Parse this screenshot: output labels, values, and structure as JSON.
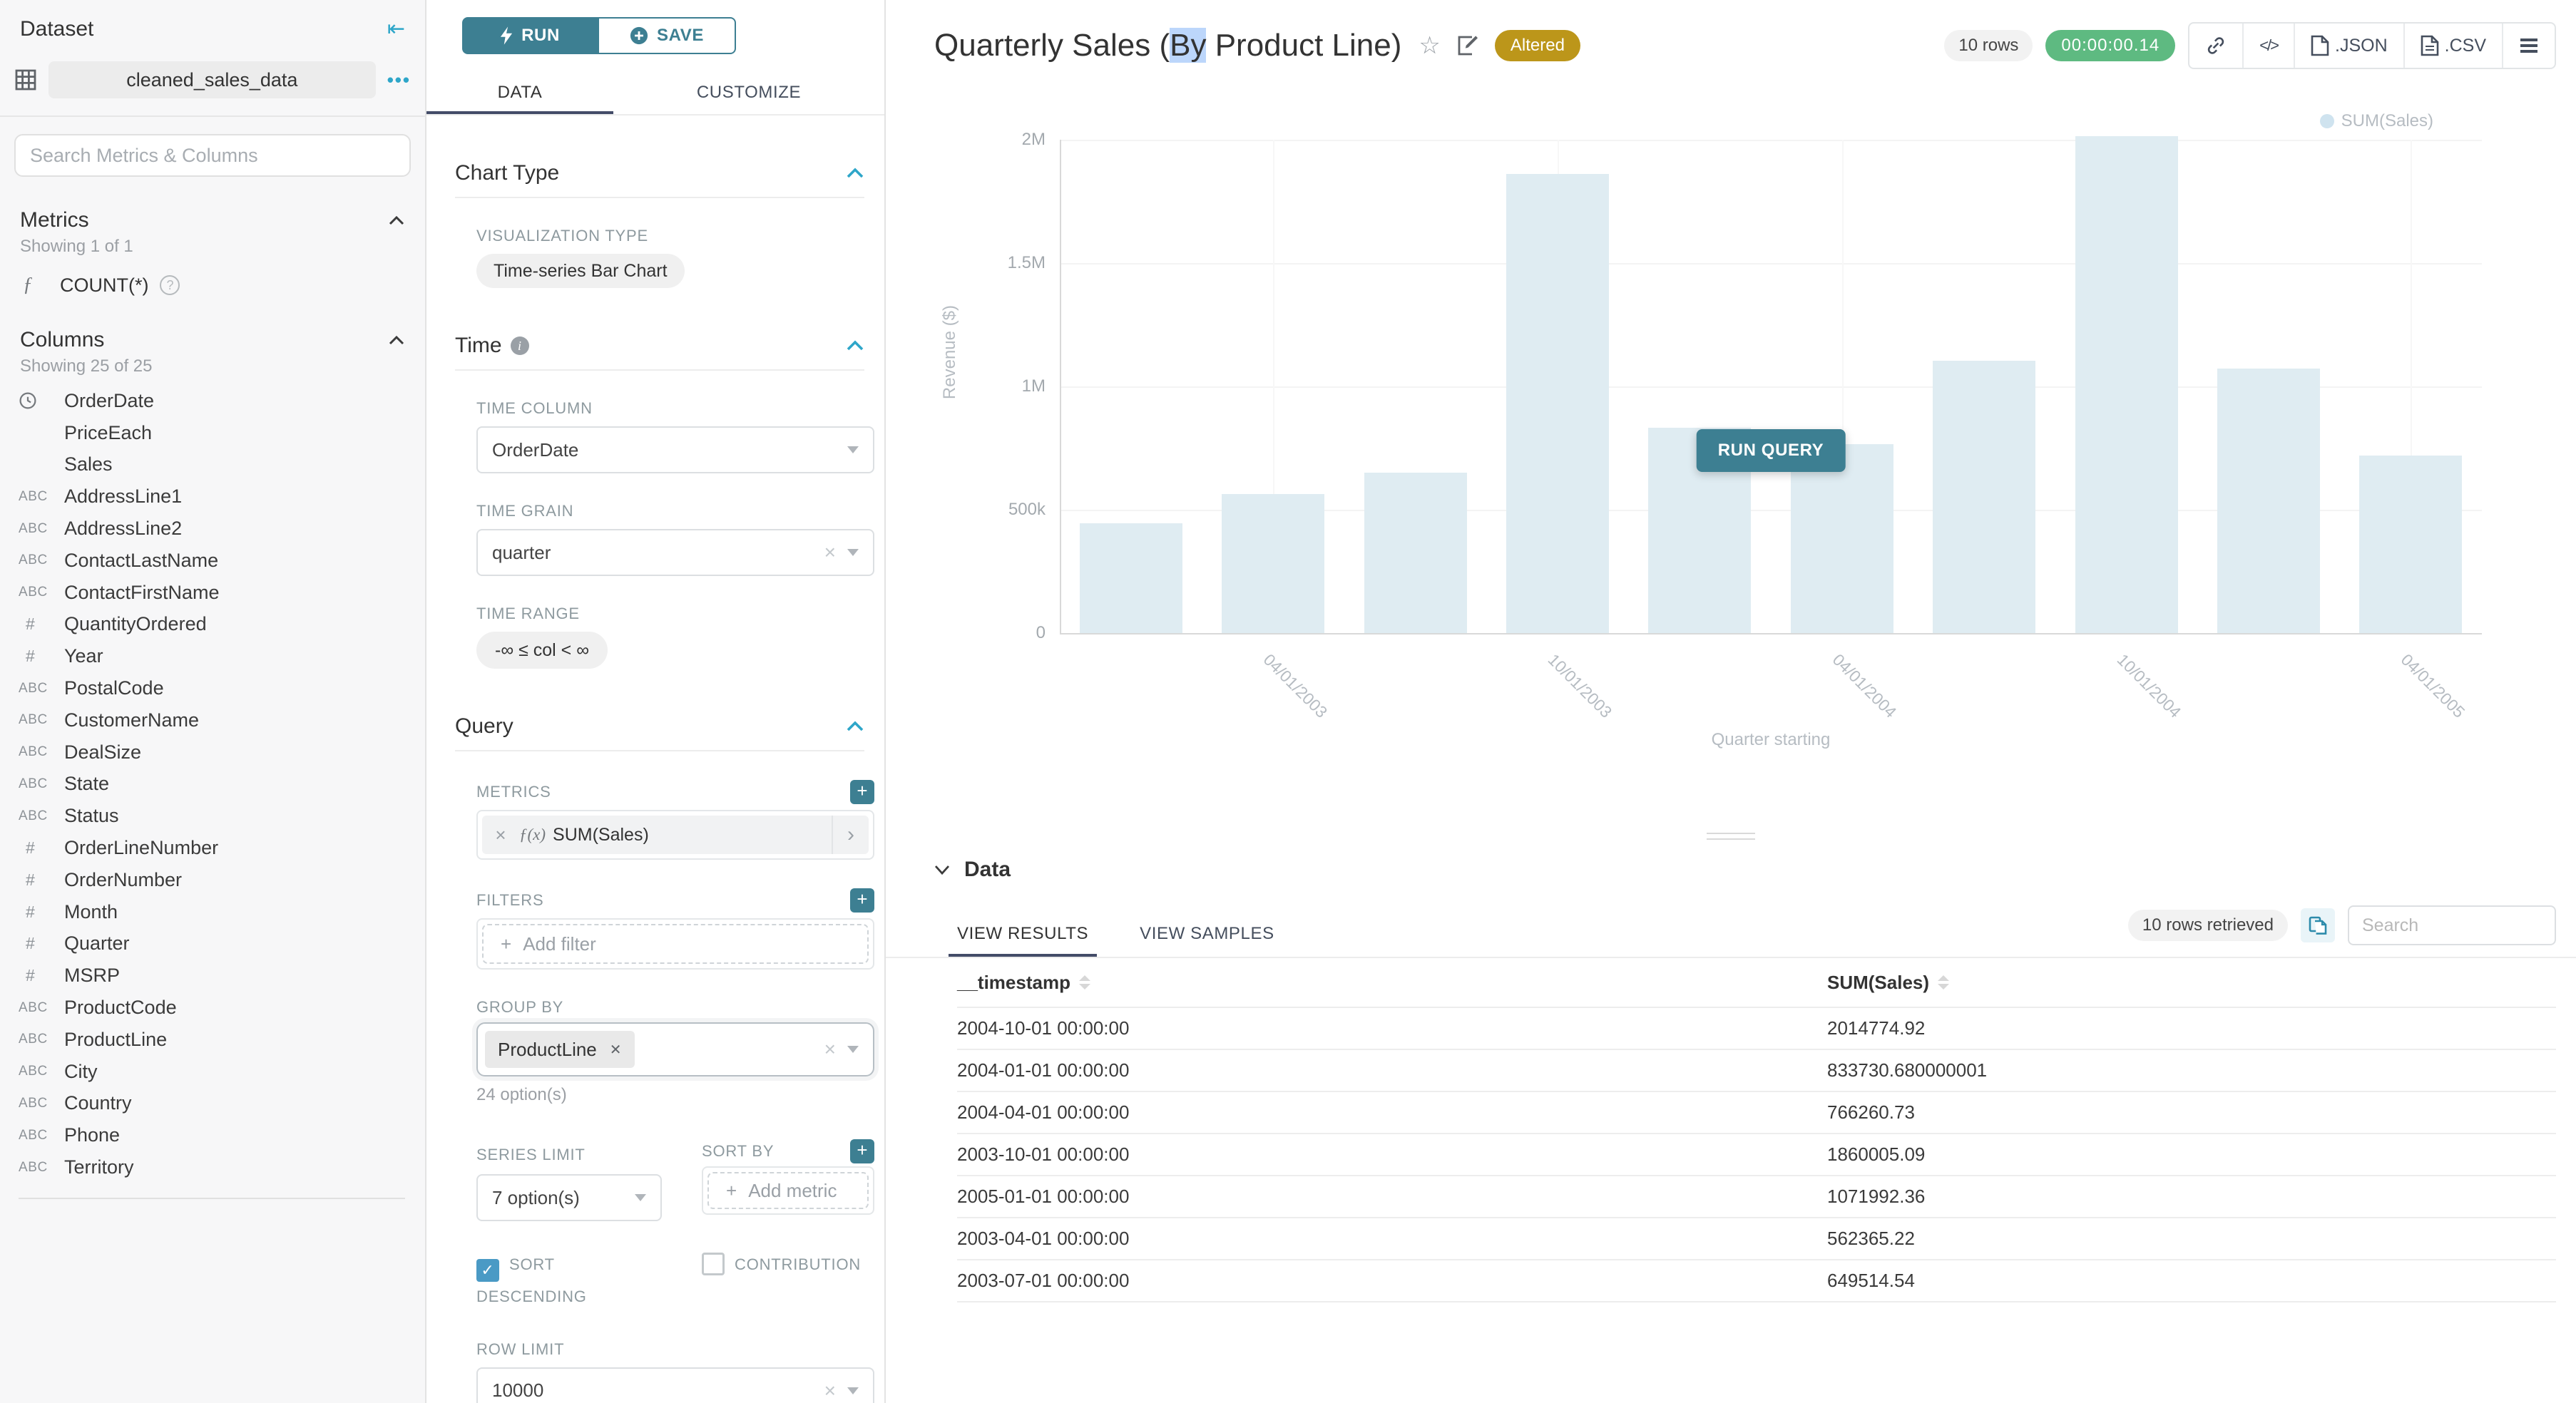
{
  "colors": {
    "accent_teal": "#3d7f92",
    "icon_teal": "#2ea6c9",
    "tab_underline": "#434c68",
    "altered_gold": "#bc961a",
    "timer_green": "#5eba81",
    "checkbox_blue": "#4a9ac5",
    "bar_fill": "#dfecf2",
    "selection_blue": "#bcd6fb"
  },
  "dataset_panel": {
    "title": "Dataset",
    "dataset_name": "cleaned_sales_data",
    "search_placeholder": "Search Metrics & Columns",
    "metrics": {
      "title": "Metrics",
      "showing": "Showing 1 of 1",
      "items": [
        {
          "name": "COUNT(*)",
          "icon": "function"
        }
      ]
    },
    "columns": {
      "title": "Columns",
      "showing": "Showing 25 of 25",
      "items": [
        {
          "name": "OrderDate",
          "type": "time"
        },
        {
          "name": "PriceEach",
          "type": "none"
        },
        {
          "name": "Sales",
          "type": "none"
        },
        {
          "name": "AddressLine1",
          "type": "text"
        },
        {
          "name": "AddressLine2",
          "type": "text"
        },
        {
          "name": "ContactLastName",
          "type": "text"
        },
        {
          "name": "ContactFirstName",
          "type": "text"
        },
        {
          "name": "QuantityOrdered",
          "type": "number"
        },
        {
          "name": "Year",
          "type": "number"
        },
        {
          "name": "PostalCode",
          "type": "text"
        },
        {
          "name": "CustomerName",
          "type": "text"
        },
        {
          "name": "DealSize",
          "type": "text"
        },
        {
          "name": "State",
          "type": "text"
        },
        {
          "name": "Status",
          "type": "text"
        },
        {
          "name": "OrderLineNumber",
          "type": "number"
        },
        {
          "name": "OrderNumber",
          "type": "number"
        },
        {
          "name": "Month",
          "type": "number"
        },
        {
          "name": "Quarter",
          "type": "number"
        },
        {
          "name": "MSRP",
          "type": "number"
        },
        {
          "name": "ProductCode",
          "type": "text"
        },
        {
          "name": "ProductLine",
          "type": "text"
        },
        {
          "name": "City",
          "type": "text"
        },
        {
          "name": "Country",
          "type": "text"
        },
        {
          "name": "Phone",
          "type": "text"
        },
        {
          "name": "Territory",
          "type": "text"
        }
      ]
    }
  },
  "control_panel": {
    "run_label": "RUN",
    "save_label": "SAVE",
    "tabs": {
      "data": "DATA",
      "customize": "CUSTOMIZE"
    },
    "chart_type": {
      "title": "Chart Type",
      "viz_label": "VISUALIZATION TYPE",
      "viz_value": "Time-series Bar Chart"
    },
    "time": {
      "title": "Time",
      "column_label": "TIME COLUMN",
      "column_value": "OrderDate",
      "grain_label": "TIME GRAIN",
      "grain_value": "quarter",
      "range_label": "TIME RANGE",
      "range_value": "-∞ ≤ col < ∞"
    },
    "query": {
      "title": "Query",
      "metrics_label": "METRICS",
      "metric_prefix": "ƒ(x)",
      "metric_value": "SUM(Sales)",
      "filters_label": "FILTERS",
      "add_filter_label": "Add filter",
      "group_by_label": "GROUP BY",
      "group_by_value": "ProductLine",
      "group_by_hint": "24 option(s)",
      "series_limit_label": "SERIES LIMIT",
      "series_limit_value": "7 option(s)",
      "sort_by_label": "SORT BY",
      "add_metric_label": "Add metric",
      "sort_descending_label": "SORT DESCENDING",
      "contribution_label": "CONTRIBUTION",
      "row_limit_label": "ROW LIMIT",
      "row_limit_value": "10000"
    }
  },
  "header": {
    "title_pre": "Quarterly Sales (",
    "title_selected": "By",
    "title_post": " Product Line)",
    "altered_badge": "Altered",
    "rows_badge": "10 rows",
    "timer": "00:00:00.14",
    "export_json_label": ".JSON",
    "export_csv_label": ".CSV"
  },
  "chart_data": {
    "type": "bar",
    "series_name": "SUM(Sales)",
    "x": [
      "2003-01-01",
      "2003-04-01",
      "2003-07-01",
      "2003-10-01",
      "2004-01-01",
      "2004-04-01",
      "2004-07-01",
      "2004-10-01",
      "2005-01-01",
      "2005-04-01"
    ],
    "values": [
      445000,
      562365.22,
      649514.54,
      1860005.09,
      833730.68,
      766260.73,
      1104000,
      2014774.92,
      1071992.36,
      719000
    ],
    "values_note": "bars 1, 7, 10 estimated from pixels; others match the results table",
    "xlabel": "Quarter starting",
    "ylabel": "Revenue ($)",
    "ylim": [
      0,
      2000000
    ],
    "yticks": [
      {
        "v": 0,
        "label": "0"
      },
      {
        "v": 500000,
        "label": "500k"
      },
      {
        "v": 1000000,
        "label": "1M"
      },
      {
        "v": 1500000,
        "label": "1.5M"
      },
      {
        "v": 2000000,
        "label": "2M"
      }
    ],
    "xticks": [
      {
        "bar_index": 1,
        "label": "04/01/2003"
      },
      {
        "bar_index": 3,
        "label": "10/01/2003"
      },
      {
        "bar_index": 5,
        "label": "04/01/2004"
      },
      {
        "bar_index": 7,
        "label": "10/01/2004"
      },
      {
        "bar_index": 9,
        "label": "04/01/2005"
      }
    ],
    "legend_position": "top-right",
    "grid": true,
    "bar_color": "#dfecf2",
    "legend_color": "#cfe3ef",
    "run_query_label": "RUN QUERY"
  },
  "results": {
    "section_title": "Data",
    "tab_results": "VIEW RESULTS",
    "tab_samples": "VIEW SAMPLES",
    "rows_retrieved": "10 rows retrieved",
    "search_placeholder": "Search",
    "columns": [
      "__timestamp",
      "SUM(Sales)"
    ],
    "rows": [
      [
        "2004-10-01 00:00:00",
        "2014774.92"
      ],
      [
        "2004-01-01 00:00:00",
        "833730.680000001"
      ],
      [
        "2004-04-01 00:00:00",
        "766260.73"
      ],
      [
        "2003-10-01 00:00:00",
        "1860005.09"
      ],
      [
        "2005-01-01 00:00:00",
        "1071992.36"
      ],
      [
        "2003-04-01 00:00:00",
        "562365.22"
      ],
      [
        "2003-07-01 00:00:00",
        "649514.54"
      ]
    ]
  }
}
